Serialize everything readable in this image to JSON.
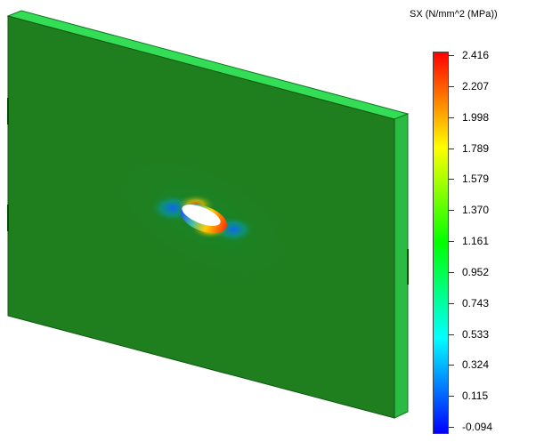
{
  "legend": {
    "title": "SX (N/mm^2 (MPa))",
    "labels": [
      "2.416",
      "2.207",
      "1.998",
      "1.789",
      "1.579",
      "1.370",
      "1.161",
      "0.952",
      "0.743",
      "0.533",
      "0.324",
      "0.115",
      "-0.094"
    ],
    "colormap": [
      "#0000ff",
      "#0080ff",
      "#00ffff",
      "#00ff80",
      "#00ff00",
      "#80ff00",
      "#ffff00",
      "#ff8000",
      "#ff0000"
    ]
  },
  "plot": {
    "plate_color": "#1f7f1f",
    "plate_edge_color": "#22dd44",
    "hole_high_color": "#ff2200",
    "hole_low_color": "#0033ff"
  }
}
